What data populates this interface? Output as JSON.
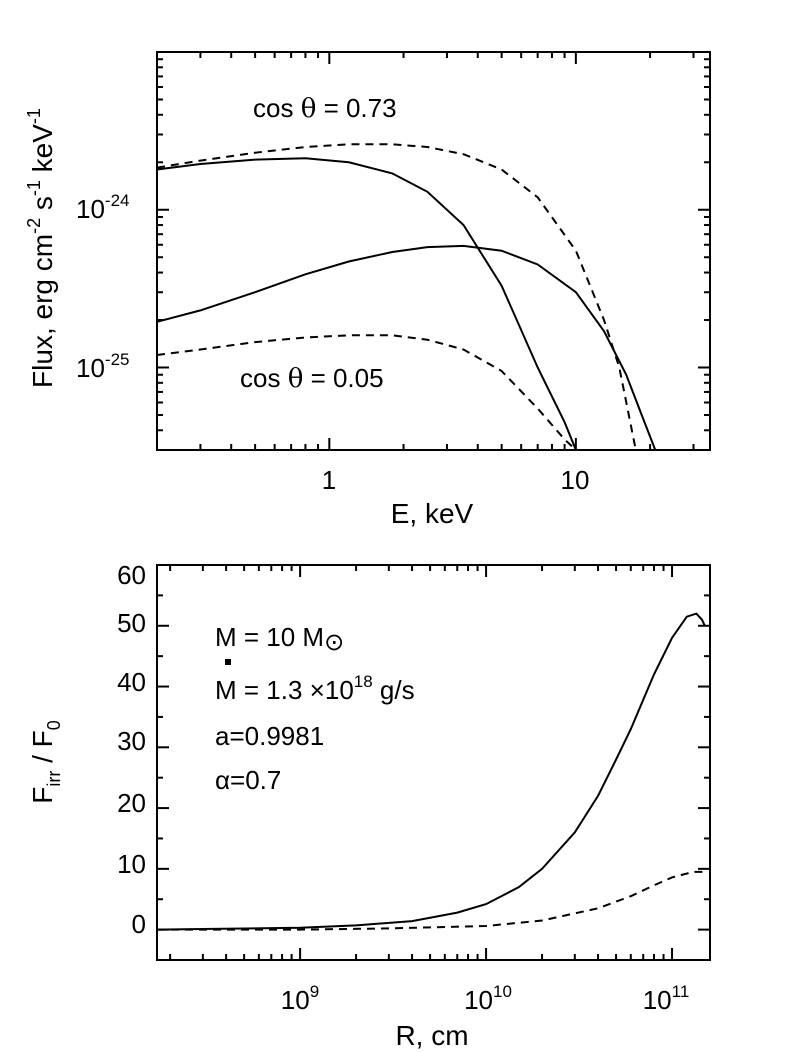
{
  "chart_data": [
    {
      "type": "line",
      "xscale": "log",
      "yscale": "log",
      "xlim": [
        0.2,
        35
      ],
      "ylim": [
        3e-26,
        1e-23
      ],
      "xlabel": "E,  keV",
      "ylabel": "Flux, erg cm-2 s-1 keV-1",
      "ylabel_parts": {
        "a": "Flux, erg cm",
        "e1": "-2",
        "b": " s",
        "e2": "-1",
        "c": " keV",
        "e3": "-1"
      },
      "xticks": [
        {
          "value": 1,
          "label": "1"
        },
        {
          "value": 10,
          "label": "10"
        }
      ],
      "yticks": [
        {
          "value": 1e-24,
          "base": "10",
          "exp": "-24"
        },
        {
          "value": 1e-25,
          "base": "10",
          "exp": "-25"
        }
      ],
      "annotations": [
        {
          "text": "cos θ = 0.73",
          "parts": {
            "a": "cos ",
            "theta": "θ",
            "b": " = 0.73"
          }
        },
        {
          "text": "cos θ = 0.05",
          "parts": {
            "a": "cos ",
            "theta": "θ",
            "b": " = 0.05"
          }
        }
      ],
      "series": [
        {
          "name": "cos θ = 0.73 solid",
          "style": "solid",
          "x": [
            0.2,
            0.3,
            0.5,
            0.8,
            1.2,
            1.8,
            2.5,
            3.5,
            5,
            7,
            9,
            10
          ],
          "y": [
            1.8e-24,
            1.95e-24,
            2.08e-24,
            2.12e-24,
            2e-24,
            1.7e-24,
            1.3e-24,
            8e-25,
            3.3e-25,
            1e-25,
            4.5e-26,
            3e-26
          ]
        },
        {
          "name": "cos θ = 0.73 dashed",
          "style": "dashed",
          "x": [
            0.2,
            0.3,
            0.5,
            0.8,
            1.2,
            1.8,
            2.5,
            3.5,
            5,
            7,
            10,
            13,
            15,
            17.5
          ],
          "y": [
            1.85e-24,
            2.05e-24,
            2.3e-24,
            2.5e-24,
            2.6e-24,
            2.6e-24,
            2.5e-24,
            2.25e-24,
            1.8e-24,
            1.2e-24,
            5.5e-25,
            2e-25,
            1e-25,
            3e-26
          ]
        },
        {
          "name": "cos θ = 0.05 solid",
          "style": "solid",
          "x": [
            0.2,
            0.3,
            0.5,
            0.8,
            1.2,
            1.8,
            2.5,
            3.5,
            5,
            7,
            10,
            13,
            16,
            18.5,
            21
          ],
          "y": [
            1.95e-25,
            2.3e-25,
            3e-25,
            3.9e-25,
            4.7e-25,
            5.4e-25,
            5.8e-25,
            5.9e-25,
            5.5e-25,
            4.5e-25,
            3e-25,
            1.7e-25,
            9e-26,
            5e-26,
            3e-26
          ]
        },
        {
          "name": "cos θ = 0.05 dashed",
          "style": "dashed",
          "x": [
            0.2,
            0.3,
            0.5,
            0.8,
            1.2,
            1.8,
            2.5,
            3.5,
            5,
            7,
            9,
            10
          ],
          "y": [
            1.2e-25,
            1.3e-25,
            1.45e-25,
            1.55e-25,
            1.6e-25,
            1.6e-25,
            1.5e-25,
            1.3e-25,
            9.5e-26,
            5.5e-26,
            3.5e-26,
            3e-26
          ]
        }
      ]
    },
    {
      "type": "line",
      "xscale": "log",
      "yscale": "linear",
      "xlim": [
        170000000.0,
        160000000000.0
      ],
      "ylim": [
        -5,
        60
      ],
      "xlabel": "R, cm",
      "ylabel": "F_irr / F_0",
      "ylabel_parts": {
        "f1": "F",
        "sub1": "irr",
        "slash": " / F",
        "sub2": "0"
      },
      "xticks": [
        {
          "value": 1000000000.0,
          "base": "10",
          "exp": "9"
        },
        {
          "value": 10000000000.0,
          "base": "10",
          "exp": "10"
        },
        {
          "value": 100000000000.0,
          "base": "10",
          "exp": "11"
        }
      ],
      "yticks": [
        {
          "value": 0,
          "label": "0"
        },
        {
          "value": 10,
          "label": "10"
        },
        {
          "value": 20,
          "label": "20"
        },
        {
          "value": 30,
          "label": "30"
        },
        {
          "value": 40,
          "label": "40"
        },
        {
          "value": 50,
          "label": "50"
        },
        {
          "value": 60,
          "label": "60"
        }
      ],
      "annotations": [
        {
          "text": "M = 10 M⊙",
          "parts": {
            "a": "M = 10 M",
            "sun": "⊙"
          }
        },
        {
          "text": "Ṁ = 1.3 ×10^18 g/s",
          "parts": {
            "m": "M",
            "dot": "·",
            "a": " = 1.3 ×10",
            "exp": "18",
            "b": " g/s"
          }
        },
        {
          "text": "a=0.9981"
        },
        {
          "text": "α=0.7"
        }
      ],
      "series": [
        {
          "name": "solid",
          "style": "solid",
          "x": [
            170000000.0,
            300000000.0,
            1000000000.0,
            2000000000.0,
            4000000000.0,
            7000000000.0,
            10000000000.0,
            15000000000.0,
            20000000000.0,
            30000000000.0,
            40000000000.0,
            50000000000.0,
            60000000000.0,
            80000000000.0,
            100000000000.0,
            120000000000.0,
            135000000000.0,
            145000000000.0,
            150000000000.0
          ],
          "y": [
            0,
            0.1,
            0.3,
            0.7,
            1.4,
            2.8,
            4.2,
            7,
            10,
            16,
            22,
            28,
            33,
            42,
            48,
            51.5,
            52,
            51,
            50
          ]
        },
        {
          "name": "dashed",
          "style": "dashed",
          "x": [
            170000000.0,
            1000000000.0,
            3000000000.0,
            10000000000.0,
            20000000000.0,
            40000000000.0,
            60000000000.0,
            80000000000.0,
            100000000000.0,
            130000000000.0,
            150000000000.0
          ],
          "y": [
            0,
            0,
            0.2,
            0.6,
            1.5,
            3.5,
            5.5,
            7.3,
            8.6,
            9.5,
            9.5
          ]
        }
      ]
    }
  ]
}
